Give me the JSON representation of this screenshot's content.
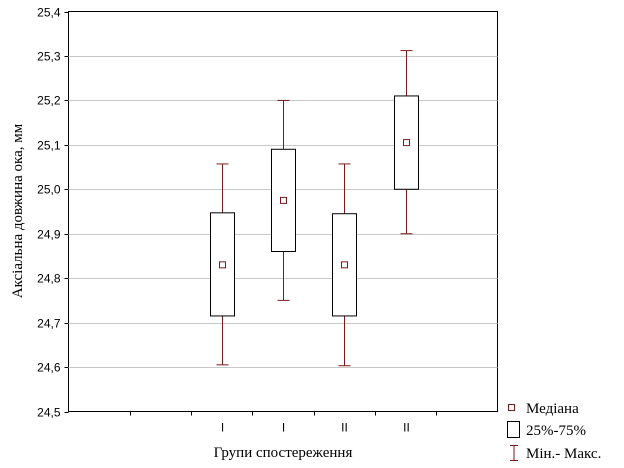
{
  "chart_data": {
    "type": "boxplot",
    "title": "",
    "xlabel": "Групи спостереження",
    "ylabel": "Аксіальна довжина ока, мм",
    "ylim": [
      24.5,
      25.4
    ],
    "yticks": [
      "24,5",
      "24,6",
      "24,7",
      "24,8",
      "24,9",
      "25,0",
      "25,1",
      "25,2",
      "25,3",
      "25,4"
    ],
    "grid": true,
    "legend_position": "bottom-right",
    "colors": {
      "whisker": "#7a1a1a",
      "median_marker": "#7a1a1a",
      "box": "#000000",
      "grid": "#c8c8c8"
    },
    "categories": [
      "I",
      "I",
      "II",
      "II"
    ],
    "boxes": [
      {
        "label": "I",
        "min": 24.605,
        "q1": 24.715,
        "median": 24.83,
        "q3": 24.947,
        "max": 25.057
      },
      {
        "label": "I",
        "min": 24.75,
        "q1": 24.86,
        "median": 24.975,
        "q3": 25.09,
        "max": 25.2
      },
      {
        "label": "II",
        "min": 24.603,
        "q1": 24.715,
        "median": 24.83,
        "q3": 24.945,
        "max": 25.057
      },
      {
        "label": "II",
        "min": 24.9,
        "q1": 25.0,
        "median": 25.105,
        "q3": 25.21,
        "max": 25.312
      }
    ],
    "legend": [
      {
        "symbol": "median-marker",
        "label": "Медіана"
      },
      {
        "symbol": "box",
        "label": "25%-75%"
      },
      {
        "symbol": "whisker",
        "label": "Мін.- Макс."
      }
    ]
  }
}
